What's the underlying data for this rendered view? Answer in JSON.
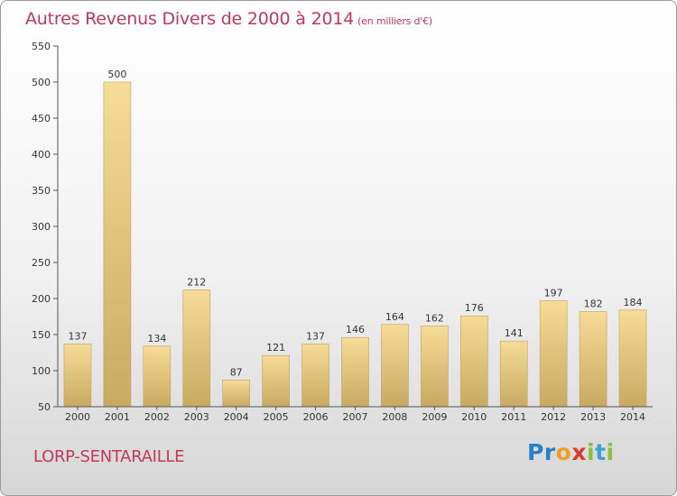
{
  "header": {
    "title": "Autres Revenus Divers de 2000 à 2014",
    "subtitle": "(en milliers d'€)"
  },
  "footer": {
    "commune": "LORP-SENTARAILLE",
    "logo_letters": [
      "P",
      "r",
      "o",
      "x",
      "i",
      "t",
      "i"
    ],
    "logo_colors": [
      "#2a7fc9",
      "#2a7fc9",
      "#f0a020",
      "#d93a2a",
      "#8cbf3a",
      "#3aa0d8",
      "#8cbf3a"
    ]
  },
  "colors": {
    "bar_light": "#f6dc98",
    "bar_dark": "#c8aa62",
    "bar_edge": "#bfa15a",
    "axis": "#555555",
    "grid": "#cfcfcf",
    "title": "#c03a57"
  },
  "chart_data": {
    "type": "bar",
    "categories": [
      "2000",
      "2001",
      "2002",
      "2003",
      "2004",
      "2005",
      "2006",
      "2007",
      "2008",
      "2009",
      "2010",
      "2011",
      "2012",
      "2013",
      "2014"
    ],
    "values": [
      137,
      500,
      134,
      212,
      87,
      121,
      137,
      146,
      164,
      162,
      176,
      141,
      197,
      182,
      184
    ],
    "ylim": [
      50,
      550
    ],
    "yticks": [
      50,
      100,
      150,
      200,
      250,
      300,
      350,
      400,
      450,
      500,
      550
    ],
    "grid": false,
    "legend": "none"
  }
}
